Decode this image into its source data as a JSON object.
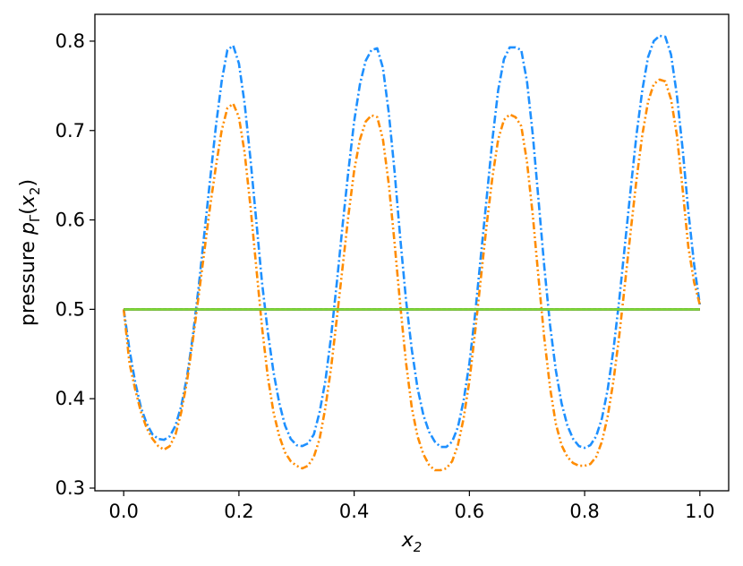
{
  "chart_data": {
    "type": "line",
    "title": "",
    "xlabel": {
      "text": "x",
      "subscript": "2"
    },
    "ylabel": {
      "prefix": "pressure ",
      "var": "p",
      "var_sub": "Γ",
      "arg": "x",
      "arg_sub": "2"
    },
    "xlim": [
      -0.05,
      1.05
    ],
    "ylim": [
      0.297,
      0.83
    ],
    "xticks": [
      0.0,
      0.2,
      0.4,
      0.6,
      0.8,
      1.0
    ],
    "xtick_labels": [
      "0.0",
      "0.2",
      "0.4",
      "0.6",
      "0.8",
      "1.0"
    ],
    "yticks": [
      0.3,
      0.4,
      0.5,
      0.6,
      0.7,
      0.8
    ],
    "ytick_labels": [
      "0.3",
      "0.4",
      "0.5",
      "0.6",
      "0.7",
      "0.8"
    ],
    "grid": false,
    "legend": "none",
    "series": [
      {
        "color": "#1e90ff",
        "style": "dashdot",
        "points": [
          [
            0.0,
            0.5
          ],
          [
            0.01,
            0.455
          ],
          [
            0.02,
            0.418
          ],
          [
            0.03,
            0.39
          ],
          [
            0.04,
            0.372
          ],
          [
            0.05,
            0.36
          ],
          [
            0.06,
            0.355
          ],
          [
            0.07,
            0.354
          ],
          [
            0.08,
            0.358
          ],
          [
            0.09,
            0.37
          ],
          [
            0.1,
            0.392
          ],
          [
            0.11,
            0.425
          ],
          [
            0.12,
            0.47
          ],
          [
            0.13,
            0.525
          ],
          [
            0.14,
            0.585
          ],
          [
            0.15,
            0.645
          ],
          [
            0.16,
            0.705
          ],
          [
            0.17,
            0.755
          ],
          [
            0.18,
            0.79
          ],
          [
            0.19,
            0.795
          ],
          [
            0.2,
            0.775
          ],
          [
            0.21,
            0.73
          ],
          [
            0.22,
            0.668
          ],
          [
            0.23,
            0.6
          ],
          [
            0.24,
            0.53
          ],
          [
            0.25,
            0.475
          ],
          [
            0.26,
            0.43
          ],
          [
            0.27,
            0.395
          ],
          [
            0.28,
            0.37
          ],
          [
            0.29,
            0.355
          ],
          [
            0.3,
            0.348
          ],
          [
            0.31,
            0.347
          ],
          [
            0.32,
            0.35
          ],
          [
            0.33,
            0.36
          ],
          [
            0.34,
            0.385
          ],
          [
            0.35,
            0.42
          ],
          [
            0.36,
            0.47
          ],
          [
            0.37,
            0.53
          ],
          [
            0.38,
            0.595
          ],
          [
            0.39,
            0.655
          ],
          [
            0.4,
            0.71
          ],
          [
            0.41,
            0.752
          ],
          [
            0.42,
            0.778
          ],
          [
            0.43,
            0.79
          ],
          [
            0.44,
            0.792
          ],
          [
            0.45,
            0.77
          ],
          [
            0.46,
            0.72
          ],
          [
            0.47,
            0.655
          ],
          [
            0.48,
            0.58
          ],
          [
            0.49,
            0.51
          ],
          [
            0.5,
            0.455
          ],
          [
            0.51,
            0.412
          ],
          [
            0.52,
            0.382
          ],
          [
            0.53,
            0.363
          ],
          [
            0.54,
            0.352
          ],
          [
            0.55,
            0.346
          ],
          [
            0.56,
            0.346
          ],
          [
            0.57,
            0.352
          ],
          [
            0.58,
            0.368
          ],
          [
            0.59,
            0.398
          ],
          [
            0.6,
            0.44
          ],
          [
            0.61,
            0.495
          ],
          [
            0.62,
            0.56
          ],
          [
            0.63,
            0.625
          ],
          [
            0.64,
            0.69
          ],
          [
            0.65,
            0.745
          ],
          [
            0.66,
            0.78
          ],
          [
            0.67,
            0.793
          ],
          [
            0.68,
            0.793
          ],
          [
            0.69,
            0.79
          ],
          [
            0.7,
            0.755
          ],
          [
            0.71,
            0.695
          ],
          [
            0.72,
            0.622
          ],
          [
            0.73,
            0.548
          ],
          [
            0.74,
            0.482
          ],
          [
            0.75,
            0.432
          ],
          [
            0.76,
            0.395
          ],
          [
            0.77,
            0.37
          ],
          [
            0.78,
            0.355
          ],
          [
            0.79,
            0.347
          ],
          [
            0.8,
            0.345
          ],
          [
            0.81,
            0.348
          ],
          [
            0.82,
            0.358
          ],
          [
            0.83,
            0.378
          ],
          [
            0.84,
            0.41
          ],
          [
            0.85,
            0.455
          ],
          [
            0.86,
            0.51
          ],
          [
            0.87,
            0.572
          ],
          [
            0.88,
            0.635
          ],
          [
            0.89,
            0.695
          ],
          [
            0.9,
            0.745
          ],
          [
            0.91,
            0.782
          ],
          [
            0.92,
            0.8
          ],
          [
            0.93,
            0.806
          ],
          [
            0.94,
            0.805
          ],
          [
            0.95,
            0.785
          ],
          [
            0.96,
            0.74
          ],
          [
            0.97,
            0.68
          ],
          [
            0.98,
            0.61
          ],
          [
            0.99,
            0.55
          ],
          [
            1.0,
            0.505
          ]
        ]
      },
      {
        "color": "#ff8c00",
        "style": "dashdotdot",
        "points": [
          [
            0.0,
            0.5
          ],
          [
            0.01,
            0.44
          ],
          [
            0.02,
            0.41
          ],
          [
            0.03,
            0.385
          ],
          [
            0.04,
            0.367
          ],
          [
            0.05,
            0.355
          ],
          [
            0.06,
            0.347
          ],
          [
            0.07,
            0.343
          ],
          [
            0.08,
            0.347
          ],
          [
            0.09,
            0.36
          ],
          [
            0.1,
            0.385
          ],
          [
            0.11,
            0.42
          ],
          [
            0.12,
            0.465
          ],
          [
            0.13,
            0.515
          ],
          [
            0.14,
            0.565
          ],
          [
            0.15,
            0.615
          ],
          [
            0.16,
            0.66
          ],
          [
            0.17,
            0.7
          ],
          [
            0.18,
            0.725
          ],
          [
            0.19,
            0.73
          ],
          [
            0.2,
            0.715
          ],
          [
            0.21,
            0.675
          ],
          [
            0.22,
            0.615
          ],
          [
            0.23,
            0.548
          ],
          [
            0.24,
            0.48
          ],
          [
            0.25,
            0.425
          ],
          [
            0.26,
            0.385
          ],
          [
            0.27,
            0.358
          ],
          [
            0.28,
            0.34
          ],
          [
            0.29,
            0.33
          ],
          [
            0.3,
            0.325
          ],
          [
            0.31,
            0.322
          ],
          [
            0.32,
            0.325
          ],
          [
            0.33,
            0.335
          ],
          [
            0.34,
            0.355
          ],
          [
            0.35,
            0.39
          ],
          [
            0.36,
            0.435
          ],
          [
            0.37,
            0.49
          ],
          [
            0.38,
            0.548
          ],
          [
            0.39,
            0.605
          ],
          [
            0.4,
            0.655
          ],
          [
            0.41,
            0.69
          ],
          [
            0.42,
            0.71
          ],
          [
            0.43,
            0.717
          ],
          [
            0.44,
            0.715
          ],
          [
            0.45,
            0.69
          ],
          [
            0.46,
            0.64
          ],
          [
            0.47,
            0.575
          ],
          [
            0.48,
            0.505
          ],
          [
            0.49,
            0.44
          ],
          [
            0.5,
            0.39
          ],
          [
            0.51,
            0.358
          ],
          [
            0.52,
            0.338
          ],
          [
            0.53,
            0.326
          ],
          [
            0.54,
            0.32
          ],
          [
            0.55,
            0.32
          ],
          [
            0.56,
            0.322
          ],
          [
            0.57,
            0.33
          ],
          [
            0.58,
            0.348
          ],
          [
            0.59,
            0.378
          ],
          [
            0.6,
            0.42
          ],
          [
            0.61,
            0.475
          ],
          [
            0.62,
            0.535
          ],
          [
            0.63,
            0.595
          ],
          [
            0.64,
            0.648
          ],
          [
            0.65,
            0.69
          ],
          [
            0.66,
            0.712
          ],
          [
            0.67,
            0.718
          ],
          [
            0.68,
            0.715
          ],
          [
            0.69,
            0.705
          ],
          [
            0.7,
            0.665
          ],
          [
            0.71,
            0.605
          ],
          [
            0.72,
            0.535
          ],
          [
            0.73,
            0.468
          ],
          [
            0.74,
            0.412
          ],
          [
            0.75,
            0.372
          ],
          [
            0.76,
            0.348
          ],
          [
            0.77,
            0.335
          ],
          [
            0.78,
            0.328
          ],
          [
            0.79,
            0.325
          ],
          [
            0.8,
            0.325
          ],
          [
            0.81,
            0.327
          ],
          [
            0.82,
            0.335
          ],
          [
            0.83,
            0.352
          ],
          [
            0.84,
            0.38
          ],
          [
            0.85,
            0.42
          ],
          [
            0.86,
            0.47
          ],
          [
            0.87,
            0.528
          ],
          [
            0.88,
            0.588
          ],
          [
            0.89,
            0.645
          ],
          [
            0.9,
            0.695
          ],
          [
            0.91,
            0.732
          ],
          [
            0.92,
            0.752
          ],
          [
            0.93,
            0.757
          ],
          [
            0.94,
            0.755
          ],
          [
            0.95,
            0.735
          ],
          [
            0.96,
            0.695
          ],
          [
            0.97,
            0.635
          ],
          [
            0.98,
            0.57
          ],
          [
            0.99,
            0.53
          ],
          [
            1.0,
            0.505
          ]
        ]
      },
      {
        "color": "#2ca02c",
        "style": "solid",
        "points": [
          [
            0.0,
            0.5
          ],
          [
            1.0,
            0.5
          ]
        ]
      },
      {
        "color": "#000000",
        "style": "solid",
        "points": [
          [
            0.0,
            0.5
          ],
          [
            1.0,
            0.5
          ]
        ]
      },
      {
        "color": "#d62728",
        "style": "dotted",
        "points": [
          [
            0.0,
            0.5
          ],
          [
            1.0,
            0.5
          ]
        ]
      },
      {
        "color": "#7fdc3a",
        "style": "solid",
        "points": [
          [
            0.0,
            0.5
          ],
          [
            1.0,
            0.5
          ]
        ]
      }
    ]
  }
}
